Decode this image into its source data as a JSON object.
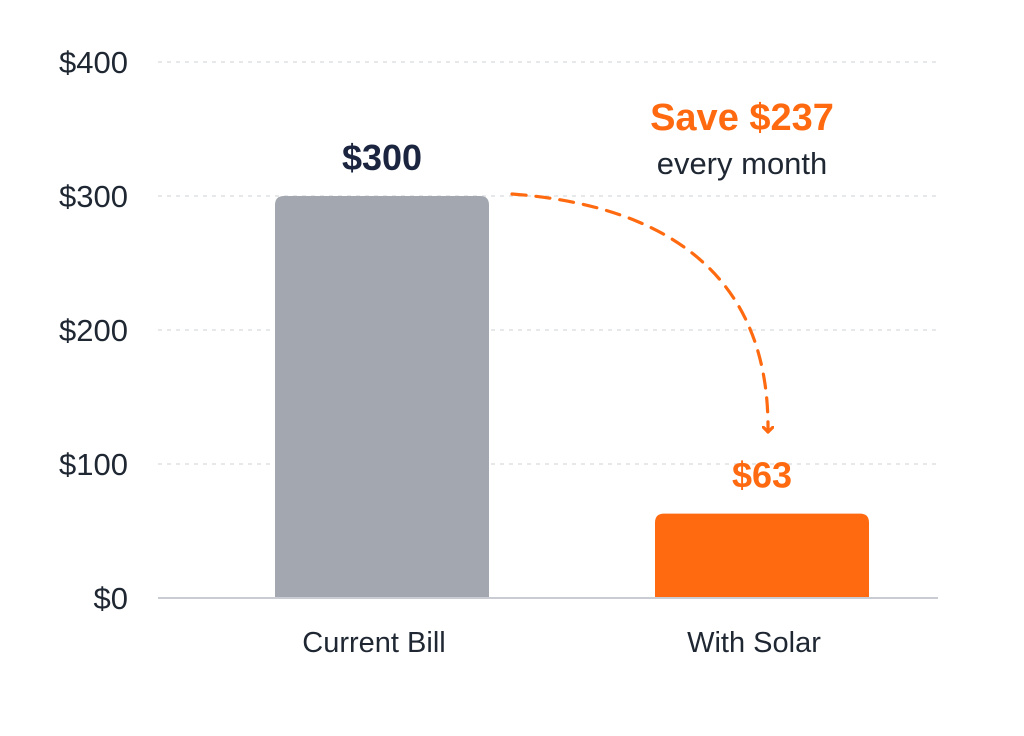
{
  "chart_data": {
    "type": "bar",
    "title": "",
    "xlabel": "",
    "ylabel": "",
    "categories": [
      "Current Bill",
      "With Solar"
    ],
    "values": [
      300,
      63
    ],
    "value_labels": [
      "$300",
      "$63"
    ],
    "ylim": [
      0,
      400
    ],
    "yticks": [
      0,
      100,
      200,
      300,
      400
    ],
    "ytick_labels": [
      "$0",
      "$100",
      "$200",
      "$300",
      "$400"
    ],
    "grid": true,
    "bar_colors": [
      "#a3a8b0",
      "#ff6a10"
    ],
    "value_label_colors": [
      "#1b2540",
      "#ff6a10"
    ],
    "annotation": {
      "headline": "Save $237",
      "subtext": "every month",
      "color": "#ff6a10",
      "arrow": "dashed curved arrow from Current Bill bar to With Solar bar"
    }
  },
  "colors": {
    "axis_text": "#1f2733",
    "gridline": "#d6d9de",
    "baseline": "#c9ccd2",
    "accent": "#ff6a10"
  }
}
